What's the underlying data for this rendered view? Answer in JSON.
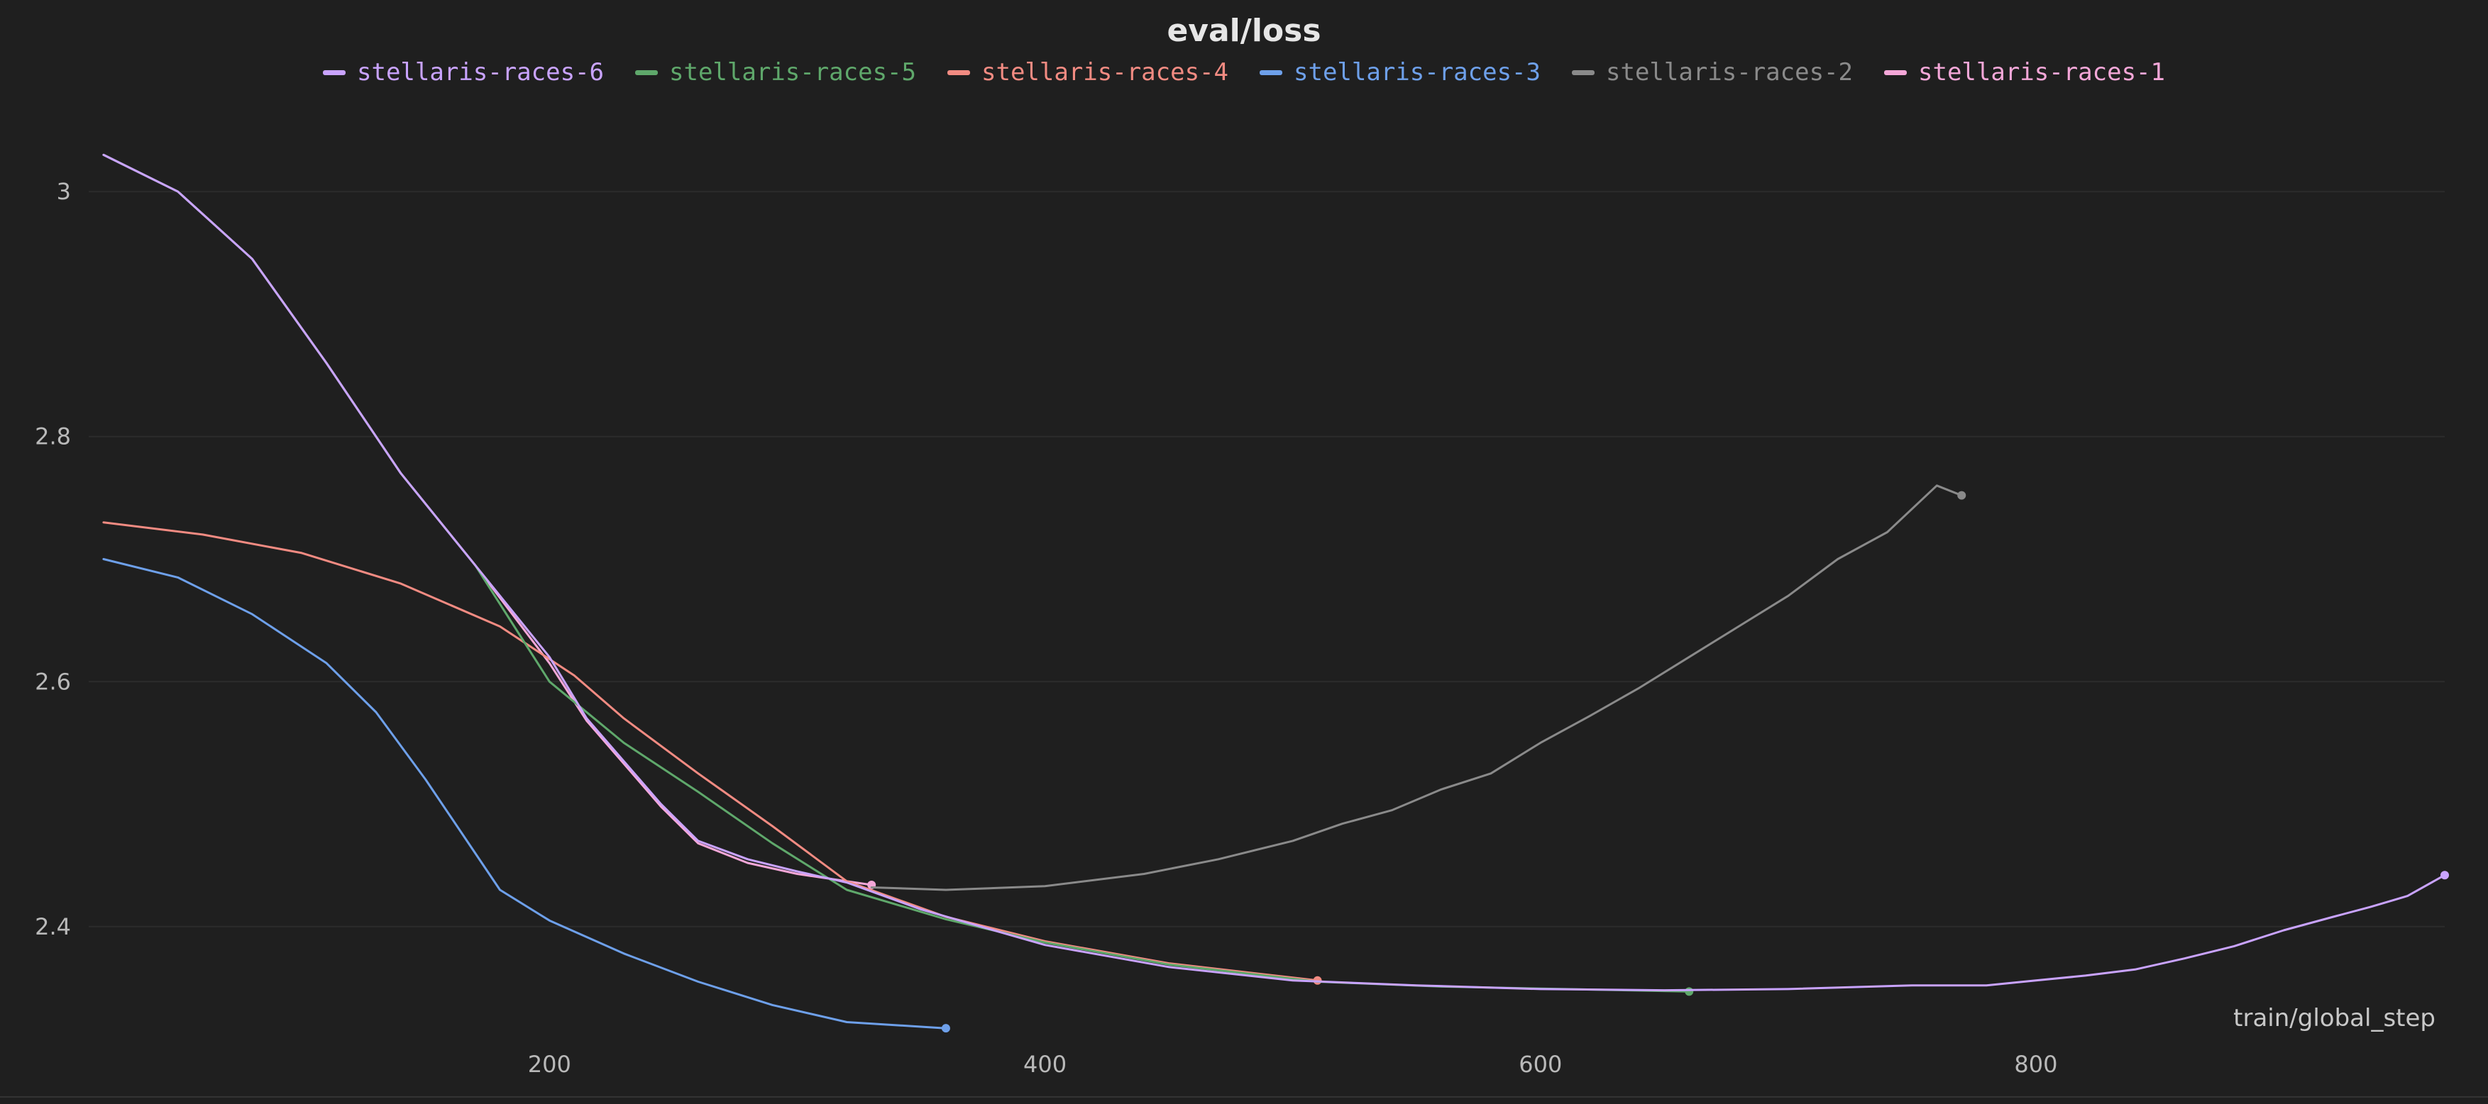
{
  "chart_data": {
    "type": "line",
    "title": "eval/loss",
    "xlabel": "train/global_step",
    "ylabel": "",
    "xlim": [
      14,
      965
    ],
    "ylim": [
      2.32,
      3.08
    ],
    "xticks": [
      200,
      400,
      600,
      800
    ],
    "yticks": [
      2.4,
      2.6,
      2.8,
      3
    ],
    "grid": true,
    "legend_position": "top-center",
    "series": [
      {
        "name": "stellaris-races-6",
        "color": "#c9a3ff",
        "points": [
          [
            20,
            3.03
          ],
          [
            50,
            3.0
          ],
          [
            80,
            2.945
          ],
          [
            110,
            2.86
          ],
          [
            140,
            2.77
          ],
          [
            170,
            2.695
          ],
          [
            200,
            2.62
          ],
          [
            215,
            2.57
          ],
          [
            230,
            2.535
          ],
          [
            245,
            2.5
          ],
          [
            260,
            2.47
          ],
          [
            280,
            2.455
          ],
          [
            300,
            2.445
          ],
          [
            320,
            2.436
          ],
          [
            350,
            2.414
          ],
          [
            400,
            2.385
          ],
          [
            450,
            2.367
          ],
          [
            500,
            2.356
          ],
          [
            550,
            2.352
          ],
          [
            600,
            2.349
          ],
          [
            650,
            2.348
          ],
          [
            700,
            2.349
          ],
          [
            750,
            2.352
          ],
          [
            780,
            2.352
          ],
          [
            800,
            2.356
          ],
          [
            820,
            2.36
          ],
          [
            840,
            2.365
          ],
          [
            860,
            2.374
          ],
          [
            880,
            2.384
          ],
          [
            900,
            2.397
          ],
          [
            920,
            2.408
          ],
          [
            935,
            2.416
          ],
          [
            950,
            2.425
          ],
          [
            965,
            2.442
          ]
        ]
      },
      {
        "name": "stellaris-races-5",
        "color": "#5fa86b",
        "points": [
          [
            20,
            3.03
          ],
          [
            50,
            3.0
          ],
          [
            80,
            2.945
          ],
          [
            110,
            2.86
          ],
          [
            140,
            2.77
          ],
          [
            170,
            2.695
          ],
          [
            200,
            2.6
          ],
          [
            230,
            2.55
          ],
          [
            260,
            2.51
          ],
          [
            290,
            2.468
          ],
          [
            320,
            2.43
          ],
          [
            360,
            2.406
          ],
          [
            400,
            2.387
          ],
          [
            450,
            2.369
          ],
          [
            510,
            2.355
          ],
          [
            560,
            2.351
          ],
          [
            610,
            2.349
          ],
          [
            660,
            2.347
          ]
        ]
      },
      {
        "name": "stellaris-races-4",
        "color": "#f28b82",
        "points": [
          [
            20,
            2.73
          ],
          [
            60,
            2.72
          ],
          [
            100,
            2.705
          ],
          [
            140,
            2.68
          ],
          [
            180,
            2.645
          ],
          [
            210,
            2.605
          ],
          [
            230,
            2.57
          ],
          [
            260,
            2.525
          ],
          [
            290,
            2.482
          ],
          [
            320,
            2.437
          ],
          [
            360,
            2.408
          ],
          [
            400,
            2.388
          ],
          [
            450,
            2.37
          ],
          [
            510,
            2.356
          ]
        ]
      },
      {
        "name": "stellaris-races-3",
        "color": "#6ea0ea",
        "points": [
          [
            20,
            2.7
          ],
          [
            50,
            2.685
          ],
          [
            80,
            2.655
          ],
          [
            110,
            2.615
          ],
          [
            130,
            2.575
          ],
          [
            150,
            2.52
          ],
          [
            170,
            2.46
          ],
          [
            180,
            2.43
          ],
          [
            200,
            2.405
          ],
          [
            230,
            2.378
          ],
          [
            260,
            2.355
          ],
          [
            290,
            2.336
          ],
          [
            320,
            2.322
          ],
          [
            360,
            2.317
          ]
        ]
      },
      {
        "name": "stellaris-races-2",
        "color": "#8a8a8a",
        "points": [
          [
            330,
            2.432
          ],
          [
            360,
            2.43
          ],
          [
            400,
            2.433
          ],
          [
            440,
            2.443
          ],
          [
            470,
            2.455
          ],
          [
            500,
            2.47
          ],
          [
            520,
            2.484
          ],
          [
            540,
            2.495
          ],
          [
            560,
            2.512
          ],
          [
            580,
            2.525
          ],
          [
            600,
            2.55
          ],
          [
            620,
            2.572
          ],
          [
            640,
            2.595
          ],
          [
            660,
            2.62
          ],
          [
            680,
            2.645
          ],
          [
            700,
            2.67
          ],
          [
            720,
            2.7
          ],
          [
            740,
            2.722
          ],
          [
            760,
            2.76
          ],
          [
            770,
            2.752
          ]
        ]
      },
      {
        "name": "stellaris-races-1",
        "color": "#f4a7d8",
        "points": [
          [
            20,
            3.03
          ],
          [
            50,
            3.0
          ],
          [
            80,
            2.945
          ],
          [
            110,
            2.86
          ],
          [
            140,
            2.77
          ],
          [
            170,
            2.695
          ],
          [
            200,
            2.615
          ],
          [
            215,
            2.568
          ],
          [
            230,
            2.533
          ],
          [
            245,
            2.498
          ],
          [
            260,
            2.468
          ],
          [
            280,
            2.452
          ],
          [
            300,
            2.443
          ],
          [
            320,
            2.437
          ],
          [
            330,
            2.434
          ]
        ]
      }
    ]
  }
}
